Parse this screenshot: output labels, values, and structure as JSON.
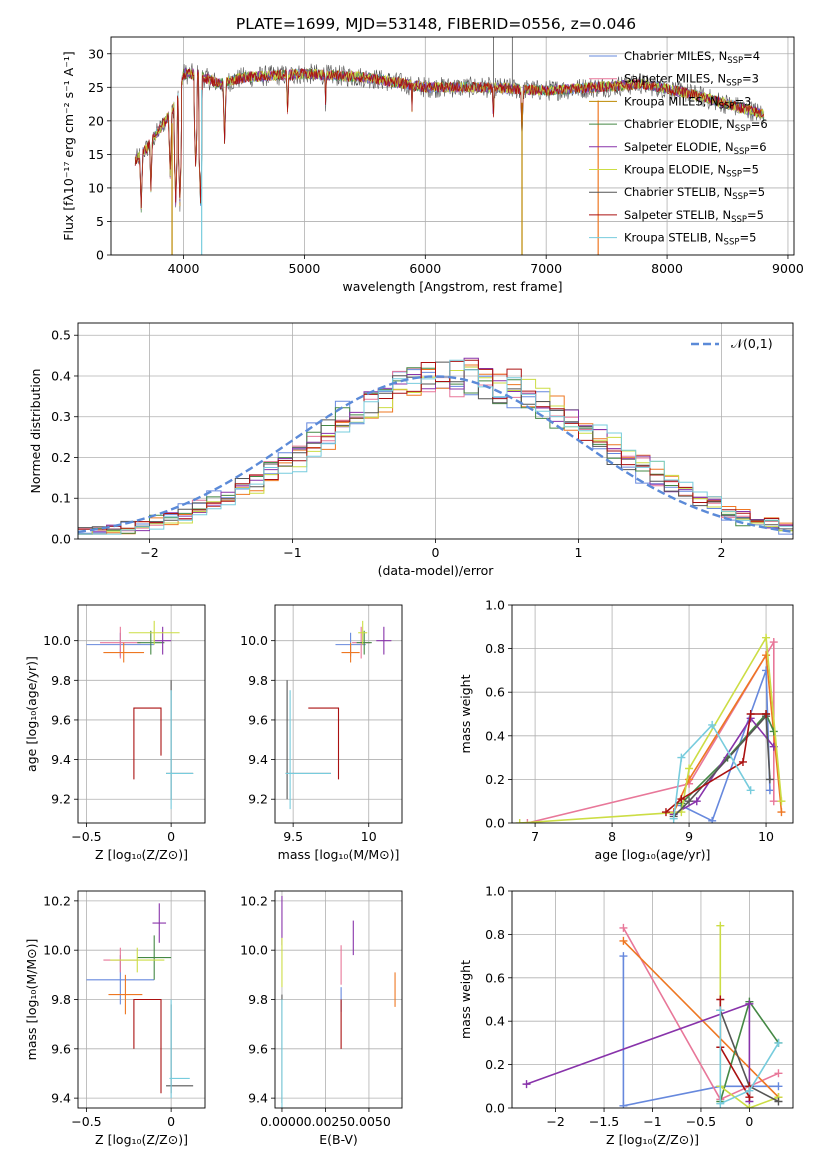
{
  "title": "PLATE=1699, MJD=53148, FIBERID=0556, z=0.046",
  "colors": [
    "#6688dd",
    "#e87799",
    "#bb8800",
    "#448844",
    "#8833aa",
    "#ccdd44",
    "#555555",
    "#aa1111",
    "#77ccdd"
  ],
  "chart_data": [
    {
      "id": "spectrum",
      "type": "line",
      "xlabel": "wavelength [Angstrom, rest frame]",
      "ylabel": "Flux [fλ10⁻¹⁷ erg cm⁻² s⁻¹ A⁻¹]",
      "xlim": [
        3400,
        9050
      ],
      "ylim": [
        0,
        32.5
      ],
      "xticks": [
        4000,
        5000,
        6000,
        7000,
        8000,
        9000
      ],
      "yticks": [
        0,
        5,
        10,
        15,
        20,
        25,
        30
      ],
      "legend": "top-right",
      "legend_entries": [
        {
          "pre": "Chabrier MILES, N",
          "sub": "SSP",
          "post": "=4"
        },
        {
          "pre": "Salpeter MILES, N",
          "sub": "SSP",
          "post": "=3"
        },
        {
          "pre": "Kroupa MILES, N",
          "sub": "SSP",
          "post": "=3"
        },
        {
          "pre": "Chabrier ELODIE, N",
          "sub": "SSP",
          "post": "=6"
        },
        {
          "pre": "Salpeter ELODIE, N",
          "sub": "SSP",
          "post": "=6"
        },
        {
          "pre": "Kroupa ELODIE, N",
          "sub": "SSP",
          "post": "=5"
        },
        {
          "pre": "Chabrier STELIB, N",
          "sub": "SSP",
          "post": "=5"
        },
        {
          "pre": "Salpeter STELIB, N",
          "sub": "SSP",
          "post": "=5"
        },
        {
          "pre": "Kroupa STELIB, N",
          "sub": "SSP",
          "post": "=5"
        }
      ],
      "continuum": [
        [
          3600,
          14
        ],
        [
          3700,
          16
        ],
        [
          3850,
          20
        ],
        [
          3950,
          23
        ],
        [
          4000,
          27
        ],
        [
          4100,
          27
        ],
        [
          4300,
          25.5
        ],
        [
          4500,
          26.5
        ],
        [
          5000,
          27
        ],
        [
          5500,
          26.5
        ],
        [
          6000,
          25
        ],
        [
          6500,
          25
        ],
        [
          7000,
          24.5
        ],
        [
          7400,
          25
        ],
        [
          7800,
          25.5
        ],
        [
          8200,
          24
        ],
        [
          8600,
          22
        ],
        [
          8800,
          21
        ]
      ],
      "dips": [
        [
          3650,
          7
        ],
        [
          3730,
          10
        ],
        [
          3890,
          12
        ],
        [
          3935,
          8
        ],
        [
          3970,
          8
        ],
        [
          4101,
          13
        ],
        [
          4140,
          8
        ],
        [
          4340,
          17
        ],
        [
          4861,
          21
        ],
        [
          5175,
          23
        ],
        [
          5890,
          22
        ],
        [
          6563,
          20
        ],
        [
          6800,
          18
        ]
      ],
      "drops": [
        [
          3905,
          "#bb8800"
        ],
        [
          4150,
          "#77ccdd"
        ],
        [
          6800,
          "#bb8800"
        ],
        [
          7430,
          "#ee7722"
        ]
      ],
      "spikes": [
        [
          6565,
          32.5
        ],
        [
          6720,
          32.5
        ]
      ]
    },
    {
      "id": "residuals",
      "type": "histogram",
      "xlabel": "(data-model)/error",
      "ylabel": "Normed distribution",
      "xlim": [
        -2.5,
        2.5
      ],
      "ylim": [
        0,
        0.53
      ],
      "xticks": [
        -2,
        -1,
        0,
        1,
        2
      ],
      "yticks": [
        0.0,
        0.1,
        0.2,
        0.3,
        0.4,
        0.5
      ],
      "legend": "top-right",
      "reference_label": "𝒩(0,1)",
      "reference_color": "#5b8ad8",
      "bin_width": 0.1,
      "histogram_colors": [
        "#6688dd",
        "#e87799",
        "#ee7722",
        "#448844",
        "#8833aa",
        "#ccdd44",
        "#555555",
        "#aa1111",
        "#77ccdd"
      ]
    },
    {
      "id": "age_vs_Z",
      "type": "errorbar",
      "xlabel": "Z [log₁₀(Z/Z⊙)]",
      "ylabel": "age  [log₁₀(age/yr)]",
      "xlim": [
        -0.55,
        0.2
      ],
      "ylim": [
        9.08,
        10.18
      ],
      "xticks": [
        -0.5,
        0.0
      ],
      "yticks": [
        9.2,
        9.4,
        9.6,
        9.8,
        10.0
      ],
      "points": [
        {
          "x": -0.3,
          "y": 9.98,
          "xe": 0.2,
          "ye": 0.06,
          "c": "#6688dd"
        },
        {
          "x": -0.3,
          "y": 9.99,
          "xe": 0.12,
          "ye": 0.08,
          "c": "#e87799"
        },
        {
          "x": -0.28,
          "y": 9.94,
          "xe": 0.12,
          "ye": 0.05,
          "c": "#ee7722"
        },
        {
          "x": -0.12,
          "y": 9.99,
          "xe": 0.08,
          "ye": 0.06,
          "c": "#448844"
        },
        {
          "x": -0.05,
          "y": 10.0,
          "xe": 0.05,
          "ye": 0.07,
          "c": "#8833aa"
        },
        {
          "x": -0.1,
          "y": 10.04,
          "xe": 0.15,
          "ye": 0.06,
          "c": "#ccdd44"
        },
        {
          "x": 0.0,
          "y": 9.5,
          "xe": 0.0,
          "ye": 0.3,
          "c": "#555555"
        },
        {
          "x": 0.05,
          "y": 9.33,
          "xe": 0.08,
          "ye": 0.0,
          "c": "#555555"
        },
        {
          "x": 0.05,
          "y": 9.33,
          "xe": 0.08,
          "ye": 0.0,
          "c": "#77ccdd"
        },
        {
          "x": 0.0,
          "y": 9.45,
          "xe": 0.0,
          "ye": 0.3,
          "c": "#77ccdd"
        }
      ],
      "brackets": [
        {
          "c": "#aa1111",
          "path": [
            [
              -0.22,
              9.3
            ],
            [
              -0.22,
              9.66
            ],
            [
              -0.06,
              9.66
            ],
            [
              -0.06,
              9.42
            ]
          ]
        }
      ]
    },
    {
      "id": "age_vs_mass",
      "type": "errorbar",
      "xlabel": "mass [log₁₀(M/M⊙)]",
      "ylabel": "",
      "xlim": [
        9.38,
        10.22
      ],
      "ylim": [
        9.08,
        10.18
      ],
      "xticks": [
        9.5,
        10.0
      ],
      "yticks": [
        9.2,
        9.4,
        9.6,
        9.8,
        10.0
      ],
      "points": [
        {
          "x": 9.88,
          "y": 9.98,
          "xe": 0.1,
          "ye": 0.06,
          "c": "#6688dd"
        },
        {
          "x": 9.95,
          "y": 9.99,
          "xe": 0.06,
          "ye": 0.08,
          "c": "#e87799"
        },
        {
          "x": 9.88,
          "y": 9.94,
          "xe": 0.06,
          "ye": 0.05,
          "c": "#ee7722"
        },
        {
          "x": 9.97,
          "y": 9.99,
          "xe": 0.05,
          "ye": 0.06,
          "c": "#448844"
        },
        {
          "x": 10.1,
          "y": 10.0,
          "xe": 0.05,
          "ye": 0.07,
          "c": "#8833aa"
        },
        {
          "x": 9.96,
          "y": 10.04,
          "xe": 0.03,
          "ye": 0.06,
          "c": "#ccdd44"
        },
        {
          "x": 9.46,
          "y": 9.5,
          "xe": 0.0,
          "ye": 0.3,
          "c": "#555555"
        },
        {
          "x": 9.6,
          "y": 9.33,
          "xe": 0.15,
          "ye": 0.0,
          "c": "#555555"
        },
        {
          "x": 9.6,
          "y": 9.33,
          "xe": 0.15,
          "ye": 0.0,
          "c": "#77ccdd"
        },
        {
          "x": 9.48,
          "y": 9.45,
          "xe": 0.0,
          "ye": 0.3,
          "c": "#77ccdd"
        }
      ],
      "brackets": [
        {
          "c": "#aa1111",
          "path": [
            [
              9.6,
              9.66
            ],
            [
              9.8,
              9.66
            ],
            [
              9.8,
              9.3
            ]
          ]
        }
      ]
    },
    {
      "id": "massweight_vs_age",
      "type": "line",
      "xlabel": "age  [log₁₀(age/yr)]",
      "ylabel": "mass weight",
      "xlim": [
        6.7,
        10.35
      ],
      "ylim": [
        0,
        1.0
      ],
      "xticks": [
        7,
        8,
        9,
        10
      ],
      "yticks": [
        0.0,
        0.2,
        0.4,
        0.6,
        0.8,
        1.0
      ],
      "series": [
        {
          "c": "#6688dd",
          "pts": [
            [
              8.9,
              0.08
            ],
            [
              9.3,
              0.01
            ],
            [
              10.0,
              0.7
            ],
            [
              10.05,
              0.15
            ]
          ]
        },
        {
          "c": "#e87799",
          "pts": [
            [
              6.9,
              0.0
            ],
            [
              9.0,
              0.18
            ],
            [
              10.1,
              0.83
            ],
            [
              10.1,
              0.1
            ]
          ]
        },
        {
          "c": "#ee7722",
          "pts": [
            [
              8.8,
              0.05
            ],
            [
              9.0,
              0.2
            ],
            [
              10.0,
              0.77
            ],
            [
              10.2,
              0.05
            ]
          ]
        },
        {
          "c": "#448844",
          "pts": [
            [
              8.9,
              0.09
            ],
            [
              9.5,
              0.3
            ],
            [
              10.0,
              0.5
            ],
            [
              10.1,
              0.42
            ]
          ]
        },
        {
          "c": "#8833aa",
          "pts": [
            [
              8.8,
              0.04
            ],
            [
              9.1,
              0.1
            ],
            [
              9.8,
              0.48
            ],
            [
              10.1,
              0.35
            ]
          ]
        },
        {
          "c": "#ccdd44",
          "pts": [
            [
              6.8,
              0.0
            ],
            [
              8.9,
              0.05
            ],
            [
              9.0,
              0.25
            ],
            [
              10.0,
              0.85
            ],
            [
              10.2,
              0.1
            ]
          ]
        },
        {
          "c": "#555555",
          "pts": [
            [
              8.8,
              0.03
            ],
            [
              9.0,
              0.1
            ],
            [
              10.0,
              0.49
            ],
            [
              10.05,
              0.2
            ]
          ]
        },
        {
          "c": "#aa1111",
          "pts": [
            [
              8.7,
              0.05
            ],
            [
              8.9,
              0.11
            ],
            [
              9.7,
              0.28
            ],
            [
              9.8,
              0.5
            ],
            [
              10.0,
              0.5
            ]
          ]
        },
        {
          "c": "#77ccdd",
          "pts": [
            [
              8.8,
              0.02
            ],
            [
              8.9,
              0.3
            ],
            [
              9.3,
              0.45
            ],
            [
              9.8,
              0.15
            ]
          ]
        }
      ]
    },
    {
      "id": "mass_vs_Z",
      "type": "errorbar",
      "xlabel": "Z [log₁₀(Z/Z⊙)]",
      "ylabel": "mass [log₁₀(M/M⊙)]",
      "xlim": [
        -0.55,
        0.2
      ],
      "ylim": [
        9.36,
        10.24
      ],
      "xticks": [
        -0.5,
        0.0
      ],
      "yticks": [
        9.4,
        9.6,
        9.8,
        10.0,
        10.2
      ],
      "points": [
        {
          "x": -0.3,
          "y": 9.88,
          "xe": 0.2,
          "ye": 0.1,
          "c": "#6688dd"
        },
        {
          "x": -0.3,
          "y": 9.96,
          "xe": 0.1,
          "ye": 0.05,
          "c": "#e87799"
        },
        {
          "x": -0.27,
          "y": 9.82,
          "xe": 0.1,
          "ye": 0.08,
          "c": "#ee7722"
        },
        {
          "x": -0.1,
          "y": 9.97,
          "xe": 0.1,
          "ye": 0.09,
          "c": "#448844"
        },
        {
          "x": -0.07,
          "y": 10.11,
          "xe": 0.04,
          "ye": 0.08,
          "c": "#8833aa"
        },
        {
          "x": -0.2,
          "y": 9.96,
          "xe": 0.16,
          "ye": 0.05,
          "c": "#ccdd44"
        },
        {
          "x": 0.05,
          "y": 9.45,
          "xe": 0.08,
          "ye": 0.0,
          "c": "#555555"
        },
        {
          "x": 0.0,
          "y": 9.6,
          "xe": 0.0,
          "ye": 0.18,
          "c": "#555555"
        },
        {
          "x": 0.05,
          "y": 9.48,
          "xe": 0.06,
          "ye": 0.0,
          "c": "#77ccdd"
        },
        {
          "x": 0.0,
          "y": 9.6,
          "xe": 0.0,
          "ye": 0.2,
          "c": "#77ccdd"
        }
      ],
      "brackets": [
        {
          "c": "#aa1111",
          "path": [
            [
              -0.22,
              9.6
            ],
            [
              -0.22,
              9.8
            ],
            [
              -0.06,
              9.8
            ],
            [
              -0.06,
              9.42
            ]
          ]
        }
      ]
    },
    {
      "id": "mass_vs_ebv",
      "type": "errorbar",
      "xlabel": "E(B-V)",
      "ylabel": "",
      "xlim": [
        -0.0004,
        0.0069
      ],
      "ylim": [
        9.36,
        10.24
      ],
      "xticks": [
        0.0,
        0.0025,
        0.005
      ],
      "xticklabels": [
        "0.0000",
        "0.0025",
        "0.0050"
      ],
      "yticks": [
        9.4,
        9.6,
        9.8,
        10.0,
        10.2
      ],
      "points": [
        {
          "x": 0.0,
          "y": 10.12,
          "xe": 0,
          "ye": 0.1,
          "c": "#8833aa"
        },
        {
          "x": 0.0,
          "y": 9.95,
          "xe": 0,
          "ye": 0.1,
          "c": "#ccdd44"
        },
        {
          "x": 0.0,
          "y": 9.6,
          "xe": 0,
          "ye": 0.22,
          "c": "#555555"
        },
        {
          "x": 0.0,
          "y": 9.55,
          "xe": 0,
          "ye": 0.25,
          "c": "#77ccdd"
        },
        {
          "x": 0.0034,
          "y": 9.94,
          "xe": 0,
          "ye": 0.08,
          "c": "#e87799"
        },
        {
          "x": 0.0034,
          "y": 9.8,
          "xe": 0,
          "ye": 0.05,
          "c": "#6688dd"
        },
        {
          "x": 0.0034,
          "y": 9.7,
          "xe": 0,
          "ye": 0.1,
          "c": "#aa1111"
        },
        {
          "x": 0.0041,
          "y": 10.05,
          "xe": 0,
          "ye": 0.07,
          "c": "#8833aa"
        },
        {
          "x": 0.0065,
          "y": 9.84,
          "xe": 0,
          "ye": 0.07,
          "c": "#ee7722"
        }
      ],
      "brackets": []
    },
    {
      "id": "massweight_vs_Z",
      "type": "line",
      "xlabel": "Z [log₁₀(Z/Z⊙)]",
      "ylabel": "mass weight",
      "xlim": [
        -2.45,
        0.45
      ],
      "ylim": [
        0,
        1.0
      ],
      "xticks": [
        -2.0,
        -1.5,
        -1.0,
        -0.5,
        0.0
      ],
      "yticks": [
        0.0,
        0.2,
        0.4,
        0.6,
        0.8,
        1.0
      ],
      "series": [
        {
          "c": "#6688dd",
          "pts": [
            [
              -1.3,
              0.7
            ],
            [
              -1.3,
              0.01
            ],
            [
              -0.3,
              0.1
            ],
            [
              0.3,
              0.1
            ]
          ]
        },
        {
          "c": "#e87799",
          "pts": [
            [
              -1.3,
              0.83
            ],
            [
              -0.3,
              0.04
            ],
            [
              0.0,
              0.1
            ],
            [
              0.3,
              0.16
            ]
          ]
        },
        {
          "c": "#ee7722",
          "pts": [
            [
              -1.3,
              0.77
            ],
            [
              0.3,
              0.05
            ]
          ]
        },
        {
          "c": "#448844",
          "pts": [
            [
              -0.3,
              0.03
            ],
            [
              0.0,
              0.49
            ],
            [
              0.3,
              0.3
            ]
          ]
        },
        {
          "c": "#8833aa",
          "pts": [
            [
              -2.3,
              0.11
            ],
            [
              0.0,
              0.48
            ],
            [
              0.0,
              0.03
            ]
          ]
        },
        {
          "c": "#ccdd44",
          "pts": [
            [
              -0.3,
              0.84
            ],
            [
              -0.3,
              0.1
            ],
            [
              0.0,
              0.0
            ],
            [
              0.3,
              0.05
            ]
          ]
        },
        {
          "c": "#555555",
          "pts": [
            [
              -0.3,
              0.45
            ],
            [
              0.0,
              0.1
            ],
            [
              0.3,
              0.03
            ]
          ]
        },
        {
          "c": "#aa1111",
          "pts": [
            [
              -0.3,
              0.5
            ],
            [
              -0.3,
              0.28
            ],
            [
              0.0,
              0.05
            ],
            [
              0.0,
              0.1
            ]
          ]
        },
        {
          "c": "#77ccdd",
          "pts": [
            [
              -0.3,
              0.45
            ],
            [
              -0.3,
              0.02
            ],
            [
              0.0,
              0.08
            ],
            [
              0.3,
              0.3
            ]
          ]
        }
      ]
    }
  ]
}
